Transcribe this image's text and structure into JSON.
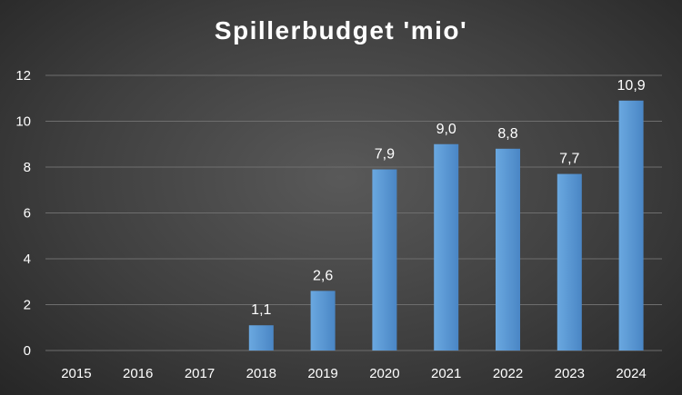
{
  "chart_data": {
    "type": "bar",
    "title": "Spillerbudget 'mio'",
    "categories": [
      "2015",
      "2016",
      "2017",
      "2018",
      "2019",
      "2020",
      "2021",
      "2022",
      "2023",
      "2024"
    ],
    "values": [
      0,
      0,
      0,
      1.1,
      2.6,
      7.9,
      9.0,
      8.8,
      7.7,
      10.9
    ],
    "data_labels": [
      "",
      "",
      "",
      "1,1",
      "2,6",
      "7,9",
      "9,0",
      "8,8",
      "7,7",
      "10,9"
    ],
    "y_ticks": [
      "0",
      "2",
      "4",
      "6",
      "8",
      "10",
      "12"
    ],
    "ylim": [
      0,
      12
    ],
    "grid": true,
    "legend": "none",
    "bar_color": "#5b9bd5",
    "bar_color_dark": "#4a86c5",
    "grid_color": "#6e6e6e"
  }
}
